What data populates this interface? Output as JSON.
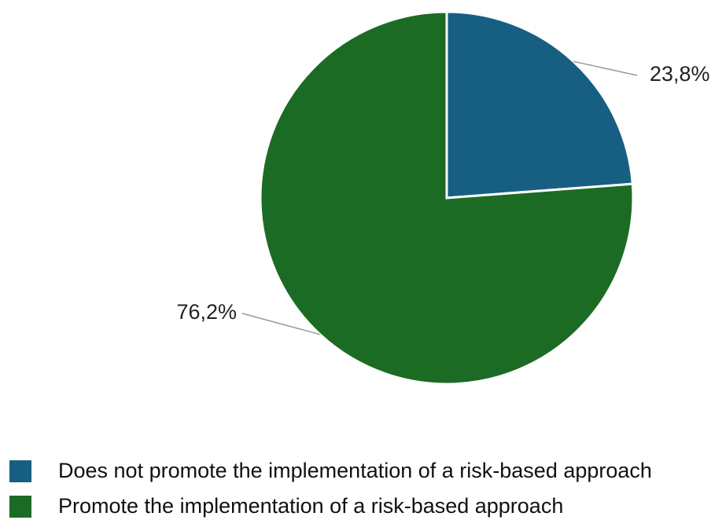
{
  "chart_data": {
    "type": "pie",
    "categories": [
      "Does not promote the implementation of a risk-based approach",
      "Promote the implementation of a risk-based approach"
    ],
    "values": [
      23.8,
      76.2
    ],
    "value_labels": [
      "23,8%",
      "76,2%"
    ],
    "colors": [
      "#175f82",
      "#1c6b25"
    ],
    "title": "",
    "legend_position": "bottom-left"
  }
}
